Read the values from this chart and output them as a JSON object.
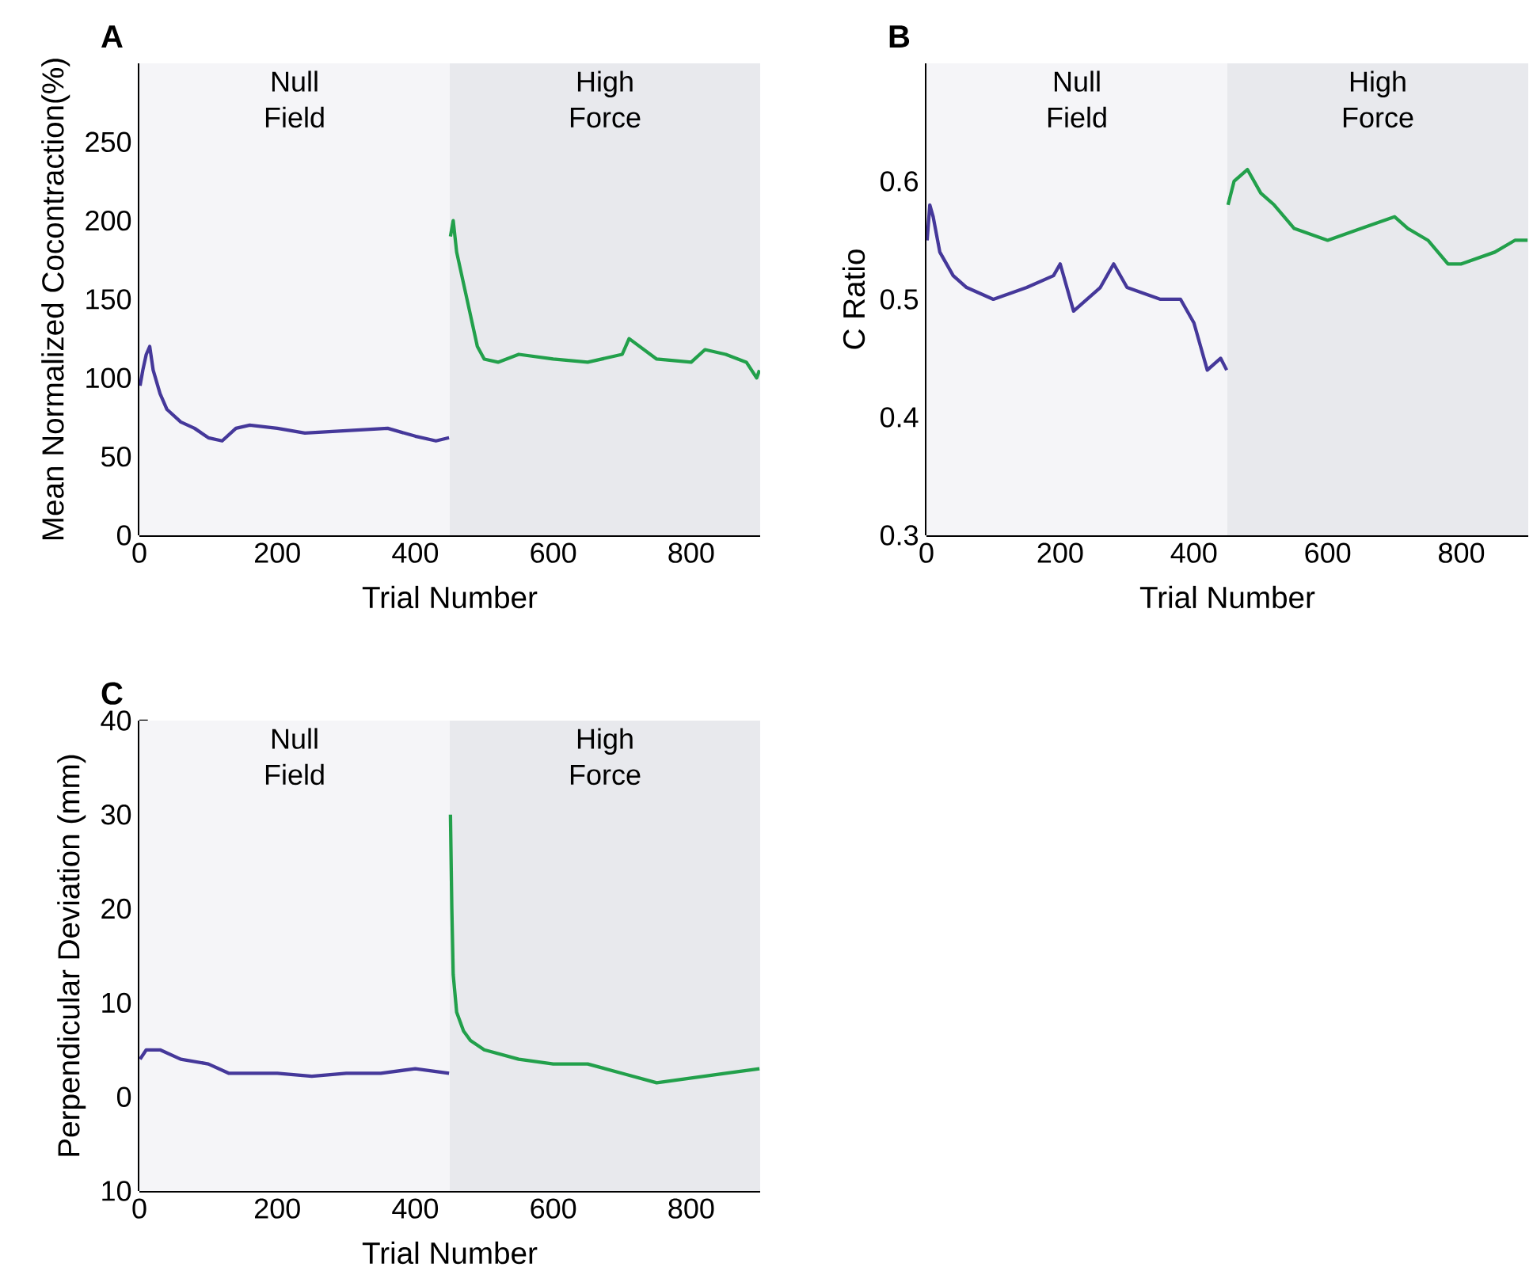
{
  "chart_data": [
    {
      "type": "line",
      "title": "A",
      "xlabel": "Trial Number",
      "ylabel": "Mean Normalized Cocontraction(%)",
      "xlim": [
        0,
        900
      ],
      "ylim": [
        0,
        300
      ],
      "xticks": [
        0,
        200,
        400,
        600,
        800
      ],
      "yticks": [
        0,
        50,
        100,
        150,
        200,
        250
      ],
      "bands": [
        {
          "axis": "x",
          "from": 0,
          "to": 450,
          "label": "Null Field",
          "color": "#f5f5f8"
        },
        {
          "axis": "x",
          "from": 450,
          "to": 900,
          "label": "High Force",
          "color": "#e8e9ed"
        }
      ],
      "series": [
        {
          "color": "#45389a",
          "x": [
            1,
            5,
            10,
            15,
            20,
            30,
            40,
            60,
            80,
            100,
            120,
            140,
            160,
            200,
            240,
            280,
            320,
            360,
            400,
            430,
            449
          ],
          "values": [
            95,
            105,
            115,
            120,
            105,
            90,
            80,
            72,
            68,
            62,
            60,
            68,
            70,
            68,
            65,
            66,
            67,
            68,
            63,
            60,
            62
          ]
        },
        {
          "color": "#22a04b",
          "x": [
            451,
            455,
            460,
            470,
            480,
            490,
            500,
            520,
            550,
            600,
            650,
            700,
            710,
            750,
            800,
            820,
            850,
            880,
            895,
            899
          ],
          "values": [
            190,
            200,
            180,
            160,
            140,
            120,
            112,
            110,
            115,
            112,
            110,
            115,
            125,
            112,
            110,
            118,
            115,
            110,
            100,
            105
          ]
        }
      ]
    },
    {
      "type": "line",
      "title": "B",
      "xlabel": "Trial Number",
      "ylabel": "C Ratio",
      "xlim": [
        0,
        900
      ],
      "ylim": [
        0.3,
        0.7
      ],
      "xticks": [
        0,
        200,
        400,
        600,
        800
      ],
      "yticks": [
        0.3,
        0.4,
        0.5,
        0.6
      ],
      "bands": [
        {
          "axis": "x",
          "from": 0,
          "to": 450,
          "label": "Null Field",
          "color": "#f5f5f8"
        },
        {
          "axis": "x",
          "from": 450,
          "to": 900,
          "label": "High Force",
          "color": "#e8e9ed"
        }
      ],
      "series": [
        {
          "color": "#45389a",
          "x": [
            1,
            5,
            10,
            20,
            40,
            60,
            100,
            150,
            190,
            200,
            220,
            260,
            280,
            300,
            350,
            380,
            400,
            420,
            440,
            449
          ],
          "values": [
            0.55,
            0.58,
            0.57,
            0.54,
            0.52,
            0.51,
            0.5,
            0.51,
            0.52,
            0.53,
            0.49,
            0.51,
            0.53,
            0.51,
            0.5,
            0.5,
            0.48,
            0.44,
            0.45,
            0.44
          ]
        },
        {
          "color": "#22a04b",
          "x": [
            451,
            460,
            480,
            500,
            520,
            550,
            600,
            650,
            700,
            720,
            750,
            780,
            800,
            850,
            880,
            899
          ],
          "values": [
            0.58,
            0.6,
            0.61,
            0.59,
            0.58,
            0.56,
            0.55,
            0.56,
            0.57,
            0.56,
            0.55,
            0.53,
            0.53,
            0.54,
            0.55,
            0.55
          ]
        }
      ]
    },
    {
      "type": "line",
      "title": "C",
      "xlabel": "Trial Number",
      "ylabel": "Perpendicular Deviation (mm)",
      "xlim": [
        0,
        900
      ],
      "ylim": [
        -10,
        40
      ],
      "xticks": [
        0,
        200,
        400,
        600,
        800
      ],
      "yticks": [
        {
          "value": -10,
          "label": "10"
        },
        0,
        10,
        20,
        30,
        40
      ],
      "bands": [
        {
          "axis": "x",
          "from": 0,
          "to": 450,
          "label": "Null Field",
          "color": "#f5f5f8"
        },
        {
          "axis": "x",
          "from": 450,
          "to": 900,
          "label": "High Force",
          "color": "#e8e9ed"
        }
      ],
      "series": [
        {
          "color": "#45389a",
          "x": [
            1,
            10,
            30,
            60,
            100,
            130,
            200,
            250,
            300,
            350,
            400,
            449
          ],
          "values": [
            4,
            5,
            5,
            4,
            3.5,
            2.5,
            2.5,
            2.2,
            2.5,
            2.5,
            3,
            2.5
          ]
        },
        {
          "color": "#22a04b",
          "x": [
            451,
            453,
            455,
            460,
            470,
            480,
            500,
            550,
            600,
            650,
            700,
            750,
            800,
            850,
            899
          ],
          "values": [
            30,
            20,
            13,
            9,
            7,
            6,
            5,
            4,
            3.5,
            3.5,
            2.5,
            1.5,
            2,
            2.5,
            3
          ]
        }
      ]
    }
  ]
}
